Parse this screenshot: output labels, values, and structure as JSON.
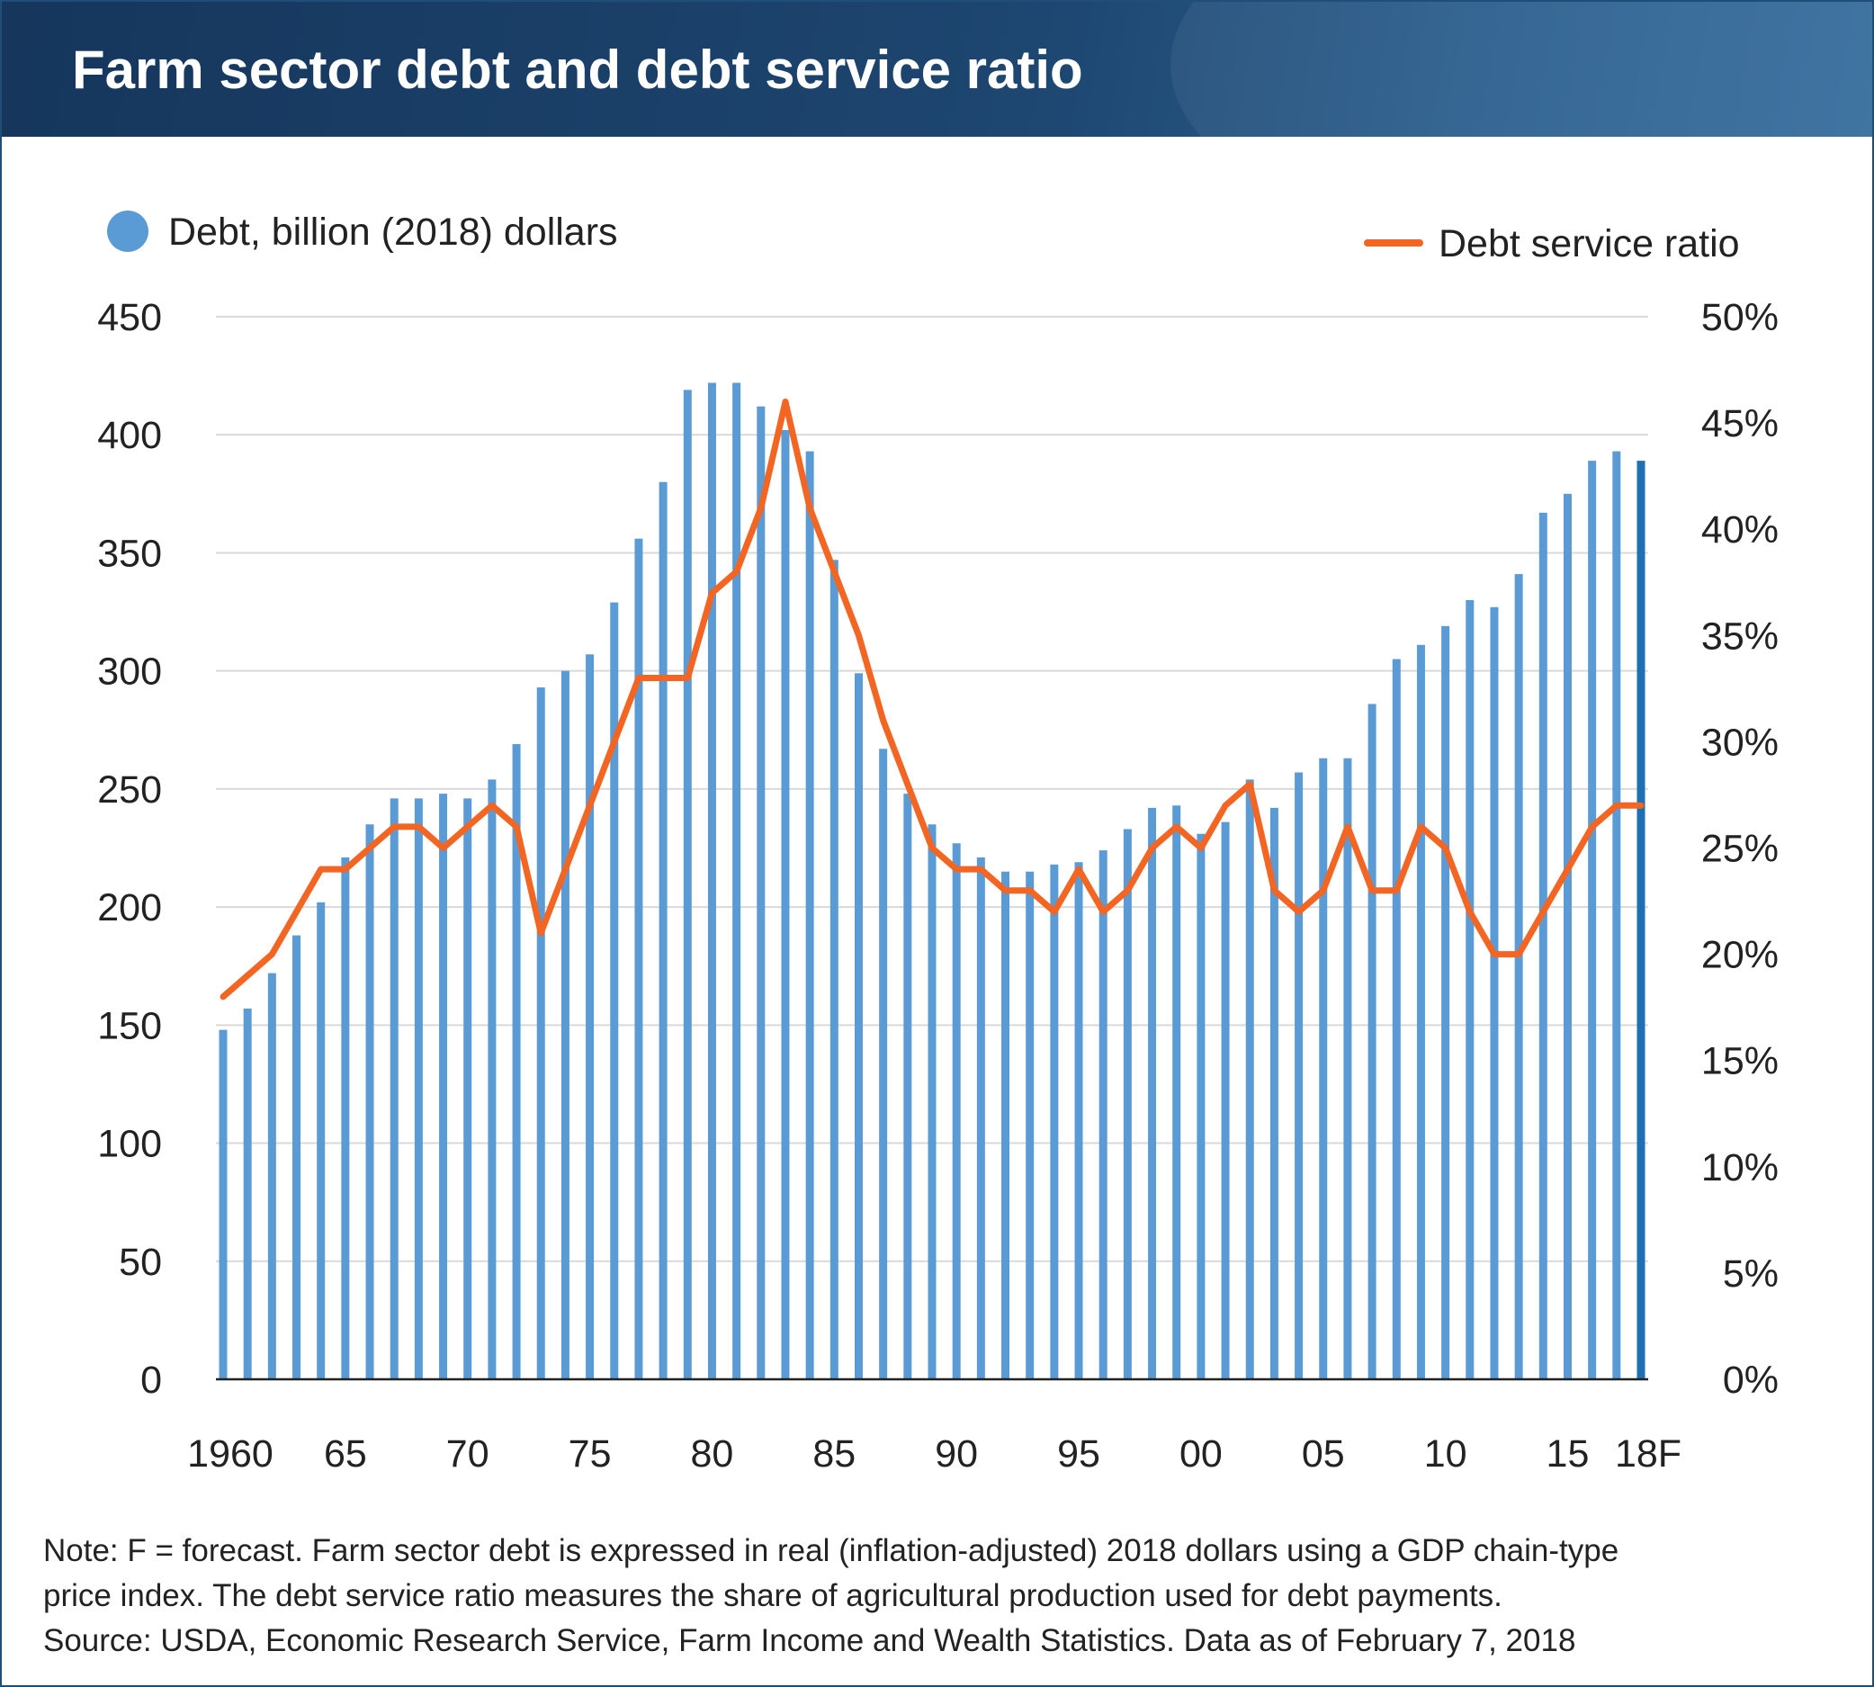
{
  "header": {
    "title": "Farm sector debt and debt service ratio"
  },
  "colors": {
    "bar": "#5b9bd5",
    "bar_forecast": "#1f6fb5",
    "line": "#f26522",
    "grid": "#d9d9d9",
    "axis": "#222222",
    "header_bg": "#1d4670"
  },
  "chart_data": {
    "type": "bar+line",
    "x_tick_labels": [
      "1960",
      "65",
      "70",
      "75",
      "80",
      "85",
      "90",
      "95",
      "00",
      "05",
      "10",
      "15",
      "18F"
    ],
    "x": [
      1960,
      1961,
      1962,
      1963,
      1964,
      1965,
      1966,
      1967,
      1968,
      1969,
      1970,
      1971,
      1972,
      1973,
      1974,
      1975,
      1976,
      1977,
      1978,
      1979,
      1980,
      1981,
      1982,
      1983,
      1984,
      1985,
      1986,
      1987,
      1988,
      1989,
      1990,
      1991,
      1992,
      1993,
      1994,
      1995,
      1996,
      1997,
      1998,
      1999,
      2000,
      2001,
      2002,
      2003,
      2004,
      2005,
      2006,
      2007,
      2008,
      2009,
      2010,
      2011,
      2012,
      2013,
      2014,
      2015,
      2016,
      2017,
      2018
    ],
    "forecast_x": [
      2018
    ],
    "left_axis": {
      "ylim": [
        0,
        450
      ],
      "ticks": [
        "0",
        "50",
        "100",
        "150",
        "200",
        "250",
        "300",
        "350",
        "400",
        "450"
      ]
    },
    "right_axis": {
      "ylim": [
        0,
        50
      ],
      "ticks": [
        "0%",
        "5%",
        "10%",
        "15%",
        "20%",
        "25%",
        "30%",
        "35%",
        "40%",
        "45%",
        "50%"
      ]
    },
    "grid": true,
    "series": [
      {
        "name": "Debt, billion (2018) dollars",
        "type": "bar",
        "axis": "left",
        "legend_marker": "circle",
        "legend_position": "top-left",
        "values": [
          148,
          157,
          172,
          188,
          202,
          221,
          235,
          246,
          246,
          248,
          246,
          254,
          269,
          293,
          300,
          307,
          329,
          356,
          380,
          419,
          422,
          422,
          412,
          402,
          393,
          347,
          299,
          267,
          248,
          235,
          227,
          221,
          215,
          215,
          218,
          219,
          224,
          233,
          242,
          243,
          231,
          236,
          254,
          242,
          257,
          263,
          263,
          286,
          305,
          311,
          319,
          330,
          327,
          341,
          367,
          375,
          389,
          393,
          389
        ]
      },
      {
        "name": "Debt service ratio",
        "type": "line",
        "axis": "right",
        "legend_marker": "line",
        "legend_position": "top-right",
        "values": [
          18,
          19,
          20,
          22,
          24,
          24,
          25,
          26,
          26,
          25,
          26,
          27,
          26,
          21,
          24,
          27,
          30,
          33,
          33,
          33,
          37,
          38,
          41,
          46,
          41,
          38,
          35,
          31,
          28,
          25,
          24,
          24,
          23,
          23,
          22,
          24,
          22,
          23,
          25,
          26,
          25,
          27,
          28,
          23,
          22,
          23,
          26,
          23,
          23,
          26,
          25,
          22,
          20,
          20,
          22,
          24,
          26,
          27,
          27
        ]
      }
    ]
  },
  "note": {
    "lines": [
      "Note: F = forecast. Farm sector debt is expressed in real (inflation-adjusted) 2018 dollars using a GDP chain-type",
      "price index. The debt service ratio measures the share of agricultural production used for debt payments.",
      "Source: USDA, Economic Research Service, Farm Income and Wealth Statistics. Data as of February 7, 2018"
    ]
  }
}
